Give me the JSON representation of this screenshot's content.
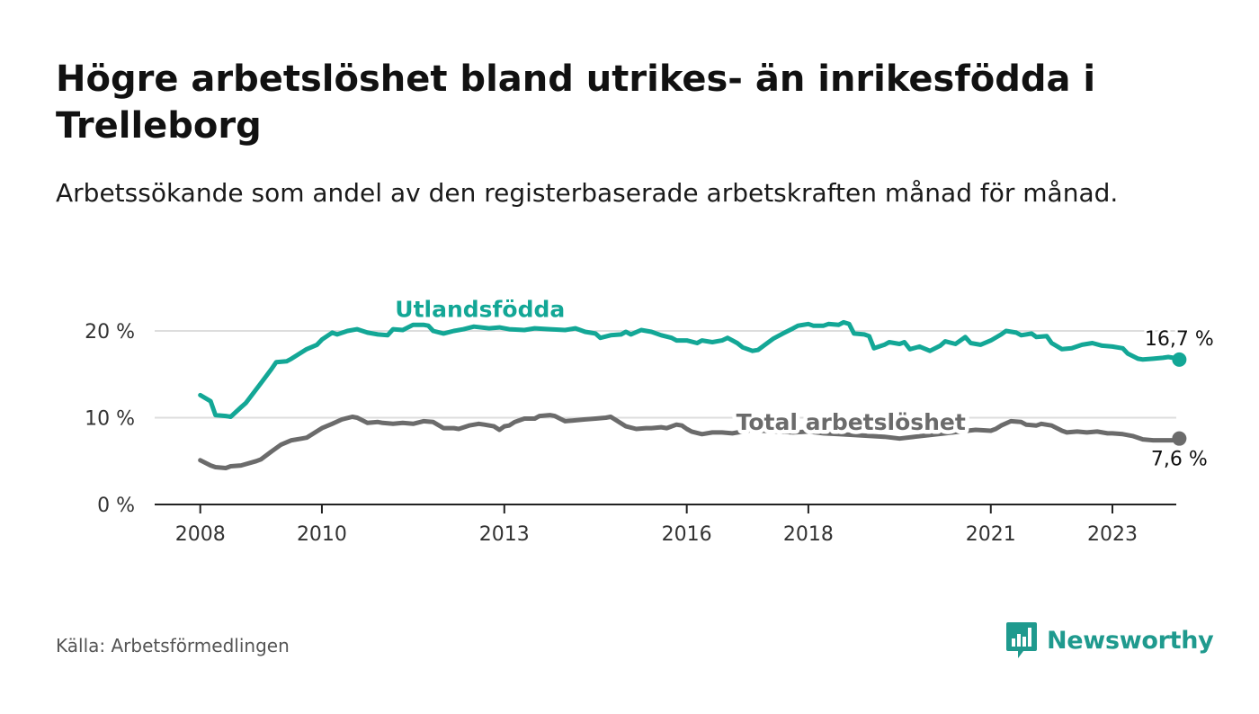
{
  "title": "Högre arbetslöshet bland utrikes- än inrikesfödda i Trelleborg",
  "subtitle": "Arbetssökande som andel av den registerbaserade arbetskraften månad för månad.",
  "source": "Källa: Arbetsförmedlingen",
  "brand": "Newsworthy",
  "colors": {
    "foreign": "#13a796",
    "total": "#6b6b6b",
    "grid": "#dddddd",
    "axis": "#222222",
    "brand": "#1f9a8e"
  },
  "chart_data": {
    "type": "line",
    "title": "Högre arbetslöshet bland utrikes- än inrikesfödda i Trelleborg",
    "xlabel": "",
    "ylabel": "",
    "xlim": [
      2007.25,
      2024.05
    ],
    "ylim": [
      0,
      20
    ],
    "x_ticks": [
      2008,
      2010,
      2013,
      2016,
      2018,
      2021,
      2023
    ],
    "y_ticks": [
      0,
      10,
      20
    ],
    "y_tick_labels": [
      "0 %",
      "10 %",
      "20 %"
    ],
    "series": [
      {
        "name": "Utlandsfödda",
        "end_label": "16,7 %",
        "points": [
          [
            2008.0,
            12.6
          ],
          [
            2008.17,
            11.9
          ],
          [
            2008.25,
            10.3
          ],
          [
            2008.42,
            10.2
          ],
          [
            2008.5,
            10.1
          ],
          [
            2008.67,
            11.2
          ],
          [
            2008.75,
            11.7
          ],
          [
            2009.0,
            14.0
          ],
          [
            2009.17,
            15.6
          ],
          [
            2009.25,
            16.4
          ],
          [
            2009.42,
            16.5
          ],
          [
            2009.5,
            16.8
          ],
          [
            2009.75,
            17.9
          ],
          [
            2009.92,
            18.4
          ],
          [
            2010.0,
            19.0
          ],
          [
            2010.17,
            19.8
          ],
          [
            2010.25,
            19.6
          ],
          [
            2010.42,
            20.0
          ],
          [
            2010.58,
            20.2
          ],
          [
            2010.75,
            19.8
          ],
          [
            2010.92,
            19.6
          ],
          [
            2011.08,
            19.5
          ],
          [
            2011.17,
            20.2
          ],
          [
            2011.33,
            20.1
          ],
          [
            2011.5,
            20.7
          ],
          [
            2011.67,
            20.7
          ],
          [
            2011.75,
            20.6
          ],
          [
            2011.83,
            20.0
          ],
          [
            2012.0,
            19.7
          ],
          [
            2012.17,
            20.0
          ],
          [
            2012.33,
            20.2
          ],
          [
            2012.5,
            20.5
          ],
          [
            2012.75,
            20.3
          ],
          [
            2012.92,
            20.4
          ],
          [
            2013.08,
            20.2
          ],
          [
            2013.33,
            20.1
          ],
          [
            2013.5,
            20.3
          ],
          [
            2013.75,
            20.2
          ],
          [
            2014.0,
            20.1
          ],
          [
            2014.17,
            20.3
          ],
          [
            2014.33,
            19.9
          ],
          [
            2014.5,
            19.7
          ],
          [
            2014.58,
            19.2
          ],
          [
            2014.75,
            19.5
          ],
          [
            2014.92,
            19.6
          ],
          [
            2015.0,
            19.9
          ],
          [
            2015.08,
            19.6
          ],
          [
            2015.25,
            20.1
          ],
          [
            2015.42,
            19.9
          ],
          [
            2015.58,
            19.5
          ],
          [
            2015.75,
            19.2
          ],
          [
            2015.83,
            18.9
          ],
          [
            2016.0,
            18.9
          ],
          [
            2016.17,
            18.6
          ],
          [
            2016.25,
            18.9
          ],
          [
            2016.42,
            18.7
          ],
          [
            2016.58,
            18.9
          ],
          [
            2016.67,
            19.2
          ],
          [
            2016.83,
            18.6
          ],
          [
            2016.92,
            18.1
          ],
          [
            2017.08,
            17.7
          ],
          [
            2017.17,
            17.8
          ],
          [
            2017.42,
            19.1
          ],
          [
            2017.58,
            19.7
          ],
          [
            2017.75,
            20.3
          ],
          [
            2017.83,
            20.6
          ],
          [
            2018.0,
            20.8
          ],
          [
            2018.08,
            20.6
          ],
          [
            2018.25,
            20.6
          ],
          [
            2018.33,
            20.8
          ],
          [
            2018.5,
            20.7
          ],
          [
            2018.58,
            21.0
          ],
          [
            2018.67,
            20.8
          ],
          [
            2018.75,
            19.7
          ],
          [
            2018.92,
            19.6
          ],
          [
            2019.0,
            19.4
          ],
          [
            2019.08,
            18.0
          ],
          [
            2019.25,
            18.4
          ],
          [
            2019.33,
            18.7
          ],
          [
            2019.5,
            18.5
          ],
          [
            2019.58,
            18.7
          ],
          [
            2019.67,
            17.9
          ],
          [
            2019.83,
            18.2
          ],
          [
            2020.0,
            17.7
          ],
          [
            2020.17,
            18.3
          ],
          [
            2020.25,
            18.8
          ],
          [
            2020.42,
            18.5
          ],
          [
            2020.58,
            19.3
          ],
          [
            2020.67,
            18.6
          ],
          [
            2020.83,
            18.4
          ],
          [
            2021.0,
            18.9
          ],
          [
            2021.17,
            19.6
          ],
          [
            2021.25,
            20.0
          ],
          [
            2021.42,
            19.8
          ],
          [
            2021.5,
            19.5
          ],
          [
            2021.67,
            19.7
          ],
          [
            2021.75,
            19.3
          ],
          [
            2021.92,
            19.4
          ],
          [
            2022.0,
            18.6
          ],
          [
            2022.17,
            17.9
          ],
          [
            2022.33,
            18.0
          ],
          [
            2022.5,
            18.4
          ],
          [
            2022.67,
            18.6
          ],
          [
            2022.83,
            18.3
          ],
          [
            2023.0,
            18.2
          ],
          [
            2023.17,
            18.0
          ],
          [
            2023.25,
            17.4
          ],
          [
            2023.42,
            16.8
          ],
          [
            2023.5,
            16.7
          ],
          [
            2023.67,
            16.8
          ],
          [
            2023.83,
            16.9
          ],
          [
            2023.92,
            17.0
          ],
          [
            2024.0,
            16.9
          ],
          [
            2024.1,
            16.7
          ]
        ]
      },
      {
        "name": "Total arbetslöshet",
        "end_label": "7,6 %",
        "points": [
          [
            2008.0,
            5.1
          ],
          [
            2008.17,
            4.5
          ],
          [
            2008.25,
            4.3
          ],
          [
            2008.42,
            4.2
          ],
          [
            2008.5,
            4.4
          ],
          [
            2008.67,
            4.5
          ],
          [
            2008.92,
            5.0
          ],
          [
            2009.0,
            5.2
          ],
          [
            2009.17,
            6.1
          ],
          [
            2009.33,
            6.9
          ],
          [
            2009.5,
            7.4
          ],
          [
            2009.67,
            7.6
          ],
          [
            2009.75,
            7.7
          ],
          [
            2010.0,
            8.8
          ],
          [
            2010.17,
            9.3
          ],
          [
            2010.33,
            9.8
          ],
          [
            2010.5,
            10.1
          ],
          [
            2010.58,
            10.0
          ],
          [
            2010.75,
            9.4
          ],
          [
            2010.92,
            9.5
          ],
          [
            2011.0,
            9.4
          ],
          [
            2011.17,
            9.3
          ],
          [
            2011.33,
            9.4
          ],
          [
            2011.5,
            9.3
          ],
          [
            2011.67,
            9.6
          ],
          [
            2011.83,
            9.5
          ],
          [
            2012.0,
            8.8
          ],
          [
            2012.17,
            8.8
          ],
          [
            2012.25,
            8.7
          ],
          [
            2012.42,
            9.1
          ],
          [
            2012.58,
            9.3
          ],
          [
            2012.67,
            9.2
          ],
          [
            2012.83,
            9.0
          ],
          [
            2012.92,
            8.6
          ],
          [
            2013.0,
            9.0
          ],
          [
            2013.08,
            9.1
          ],
          [
            2013.17,
            9.5
          ],
          [
            2013.33,
            9.9
          ],
          [
            2013.5,
            9.9
          ],
          [
            2013.58,
            10.2
          ],
          [
            2013.75,
            10.3
          ],
          [
            2013.83,
            10.2
          ],
          [
            2014.0,
            9.6
          ],
          [
            2014.17,
            9.7
          ],
          [
            2014.33,
            9.8
          ],
          [
            2014.5,
            9.9
          ],
          [
            2014.67,
            10.0
          ],
          [
            2014.75,
            10.1
          ],
          [
            2015.0,
            9.0
          ],
          [
            2015.17,
            8.7
          ],
          [
            2015.33,
            8.8
          ],
          [
            2015.42,
            8.8
          ],
          [
            2015.58,
            8.9
          ],
          [
            2015.67,
            8.8
          ],
          [
            2015.83,
            9.2
          ],
          [
            2015.92,
            9.1
          ],
          [
            2016.0,
            8.7
          ],
          [
            2016.08,
            8.4
          ],
          [
            2016.25,
            8.1
          ],
          [
            2016.42,
            8.3
          ],
          [
            2016.58,
            8.3
          ],
          [
            2016.75,
            8.2
          ],
          [
            2016.92,
            8.4
          ],
          [
            2017.08,
            8.6
          ],
          [
            2017.25,
            8.5
          ],
          [
            2017.5,
            8.4
          ],
          [
            2017.75,
            8.3
          ],
          [
            2018.0,
            8.4
          ],
          [
            2018.25,
            8.2
          ],
          [
            2018.5,
            8.1
          ],
          [
            2018.75,
            8.0
          ],
          [
            2019.0,
            7.9
          ],
          [
            2019.25,
            7.8
          ],
          [
            2019.5,
            7.6
          ],
          [
            2019.75,
            7.8
          ],
          [
            2020.0,
            8.0
          ],
          [
            2020.25,
            8.2
          ],
          [
            2020.5,
            8.4
          ],
          [
            2020.75,
            8.6
          ],
          [
            2021.0,
            8.5
          ],
          [
            2021.08,
            8.7
          ],
          [
            2021.17,
            9.1
          ],
          [
            2021.33,
            9.6
          ],
          [
            2021.5,
            9.5
          ],
          [
            2021.58,
            9.2
          ],
          [
            2021.75,
            9.1
          ],
          [
            2021.83,
            9.3
          ],
          [
            2022.0,
            9.1
          ],
          [
            2022.17,
            8.5
          ],
          [
            2022.25,
            8.3
          ],
          [
            2022.42,
            8.4
          ],
          [
            2022.58,
            8.3
          ],
          [
            2022.75,
            8.4
          ],
          [
            2022.92,
            8.2
          ],
          [
            2023.0,
            8.2
          ],
          [
            2023.17,
            8.1
          ],
          [
            2023.33,
            7.9
          ],
          [
            2023.5,
            7.5
          ],
          [
            2023.67,
            7.4
          ],
          [
            2023.83,
            7.4
          ],
          [
            2024.0,
            7.4
          ],
          [
            2024.1,
            7.6
          ]
        ]
      }
    ],
    "annotations": [
      {
        "text": "Utlandsfödda",
        "series": "Utlandsfödda",
        "x": 2012.6,
        "y": 21.6
      },
      {
        "text": "Total arbetslöshet",
        "series": "Total arbetslöshet",
        "x": 2018.7,
        "y": 8.6
      }
    ]
  }
}
